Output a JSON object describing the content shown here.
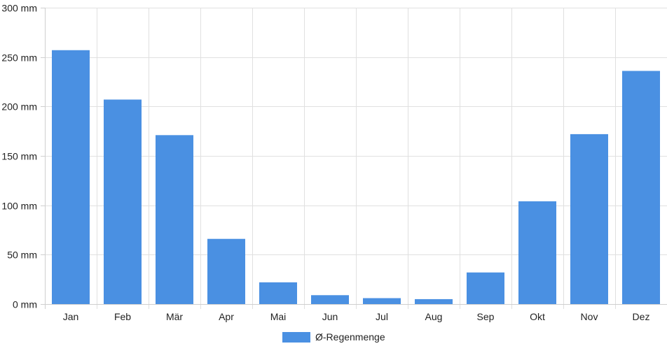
{
  "chart_data": {
    "type": "bar",
    "categories": [
      "Jan",
      "Feb",
      "Mär",
      "Apr",
      "Mai",
      "Jun",
      "Jul",
      "Aug",
      "Sep",
      "Okt",
      "Nov",
      "Dez"
    ],
    "series": [
      {
        "name": "Ø-Regenmenge",
        "color": "#4a90e2",
        "values": [
          257,
          207,
          171,
          66,
          22,
          9,
          6,
          5,
          32,
          104,
          172,
          236
        ]
      }
    ],
    "unit": "mm",
    "ylim": [
      0,
      300
    ],
    "yticks": [
      "0 mm",
      "50 mm",
      "100 mm",
      "150 mm",
      "200 mm",
      "250 mm",
      "300 mm"
    ],
    "grid": true,
    "legend_position": "bottom-center"
  }
}
